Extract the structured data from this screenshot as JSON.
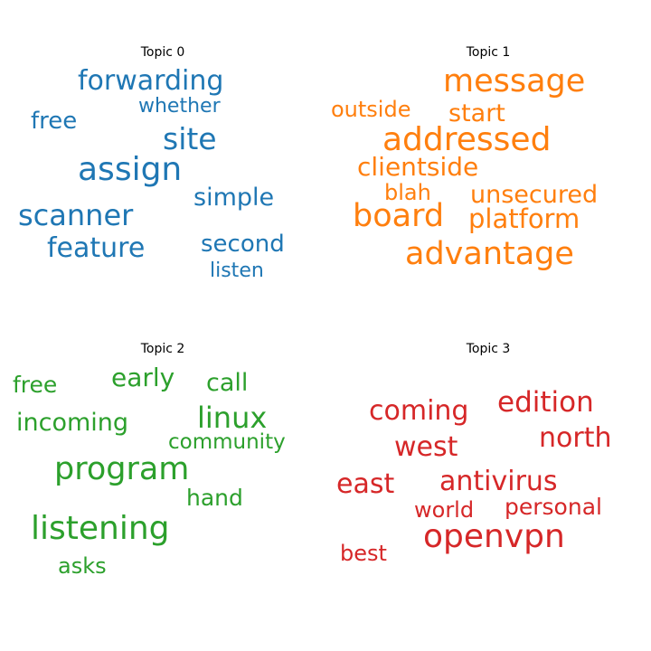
{
  "chart_data": [
    {
      "type": "wordcloud",
      "title": "Topic 0",
      "color": "#1f77b4",
      "words": [
        {
          "text": "forwarding",
          "weight": 0.82
        },
        {
          "text": "whether",
          "weight": 0.6
        },
        {
          "text": "free",
          "weight": 0.72
        },
        {
          "text": "site",
          "weight": 0.92
        },
        {
          "text": "assign",
          "weight": 1.0
        },
        {
          "text": "simple",
          "weight": 0.76
        },
        {
          "text": "scanner",
          "weight": 0.88
        },
        {
          "text": "feature",
          "weight": 0.84
        },
        {
          "text": "second",
          "weight": 0.72
        },
        {
          "text": "listen",
          "weight": 0.62
        }
      ]
    },
    {
      "type": "wordcloud",
      "title": "Topic 1",
      "color": "#ff7f0e",
      "words": [
        {
          "text": "message",
          "weight": 0.96
        },
        {
          "text": "outside",
          "weight": 0.68
        },
        {
          "text": "start",
          "weight": 0.76
        },
        {
          "text": "addressed",
          "weight": 1.0
        },
        {
          "text": "clientside",
          "weight": 0.78
        },
        {
          "text": "blah",
          "weight": 0.68
        },
        {
          "text": "unsecured",
          "weight": 0.74
        },
        {
          "text": "board",
          "weight": 0.96
        },
        {
          "text": "platform",
          "weight": 0.8
        },
        {
          "text": "advantage",
          "weight": 0.98
        }
      ]
    },
    {
      "type": "wordcloud",
      "title": "Topic 2",
      "color": "#2ca02c",
      "words": [
        {
          "text": "free",
          "weight": 0.7
        },
        {
          "text": "early",
          "weight": 0.78
        },
        {
          "text": "call",
          "weight": 0.74
        },
        {
          "text": "incoming",
          "weight": 0.76
        },
        {
          "text": "linux",
          "weight": 0.88
        },
        {
          "text": "community",
          "weight": 0.64
        },
        {
          "text": "program",
          "weight": 0.96
        },
        {
          "text": "hand",
          "weight": 0.7
        },
        {
          "text": "listening",
          "weight": 1.0
        },
        {
          "text": "asks",
          "weight": 0.66
        }
      ]
    },
    {
      "type": "wordcloud",
      "title": "Topic 3",
      "color": "#d62728",
      "words": [
        {
          "text": "edition",
          "weight": 0.86
        },
        {
          "text": "coming",
          "weight": 0.82
        },
        {
          "text": "north",
          "weight": 0.84
        },
        {
          "text": "west",
          "weight": 0.84
        },
        {
          "text": "east",
          "weight": 0.84
        },
        {
          "text": "antivirus",
          "weight": 0.84
        },
        {
          "text": "world",
          "weight": 0.66
        },
        {
          "text": "personal",
          "weight": 0.7
        },
        {
          "text": "openvpn",
          "weight": 1.0
        },
        {
          "text": "best",
          "weight": 0.66
        }
      ]
    }
  ]
}
